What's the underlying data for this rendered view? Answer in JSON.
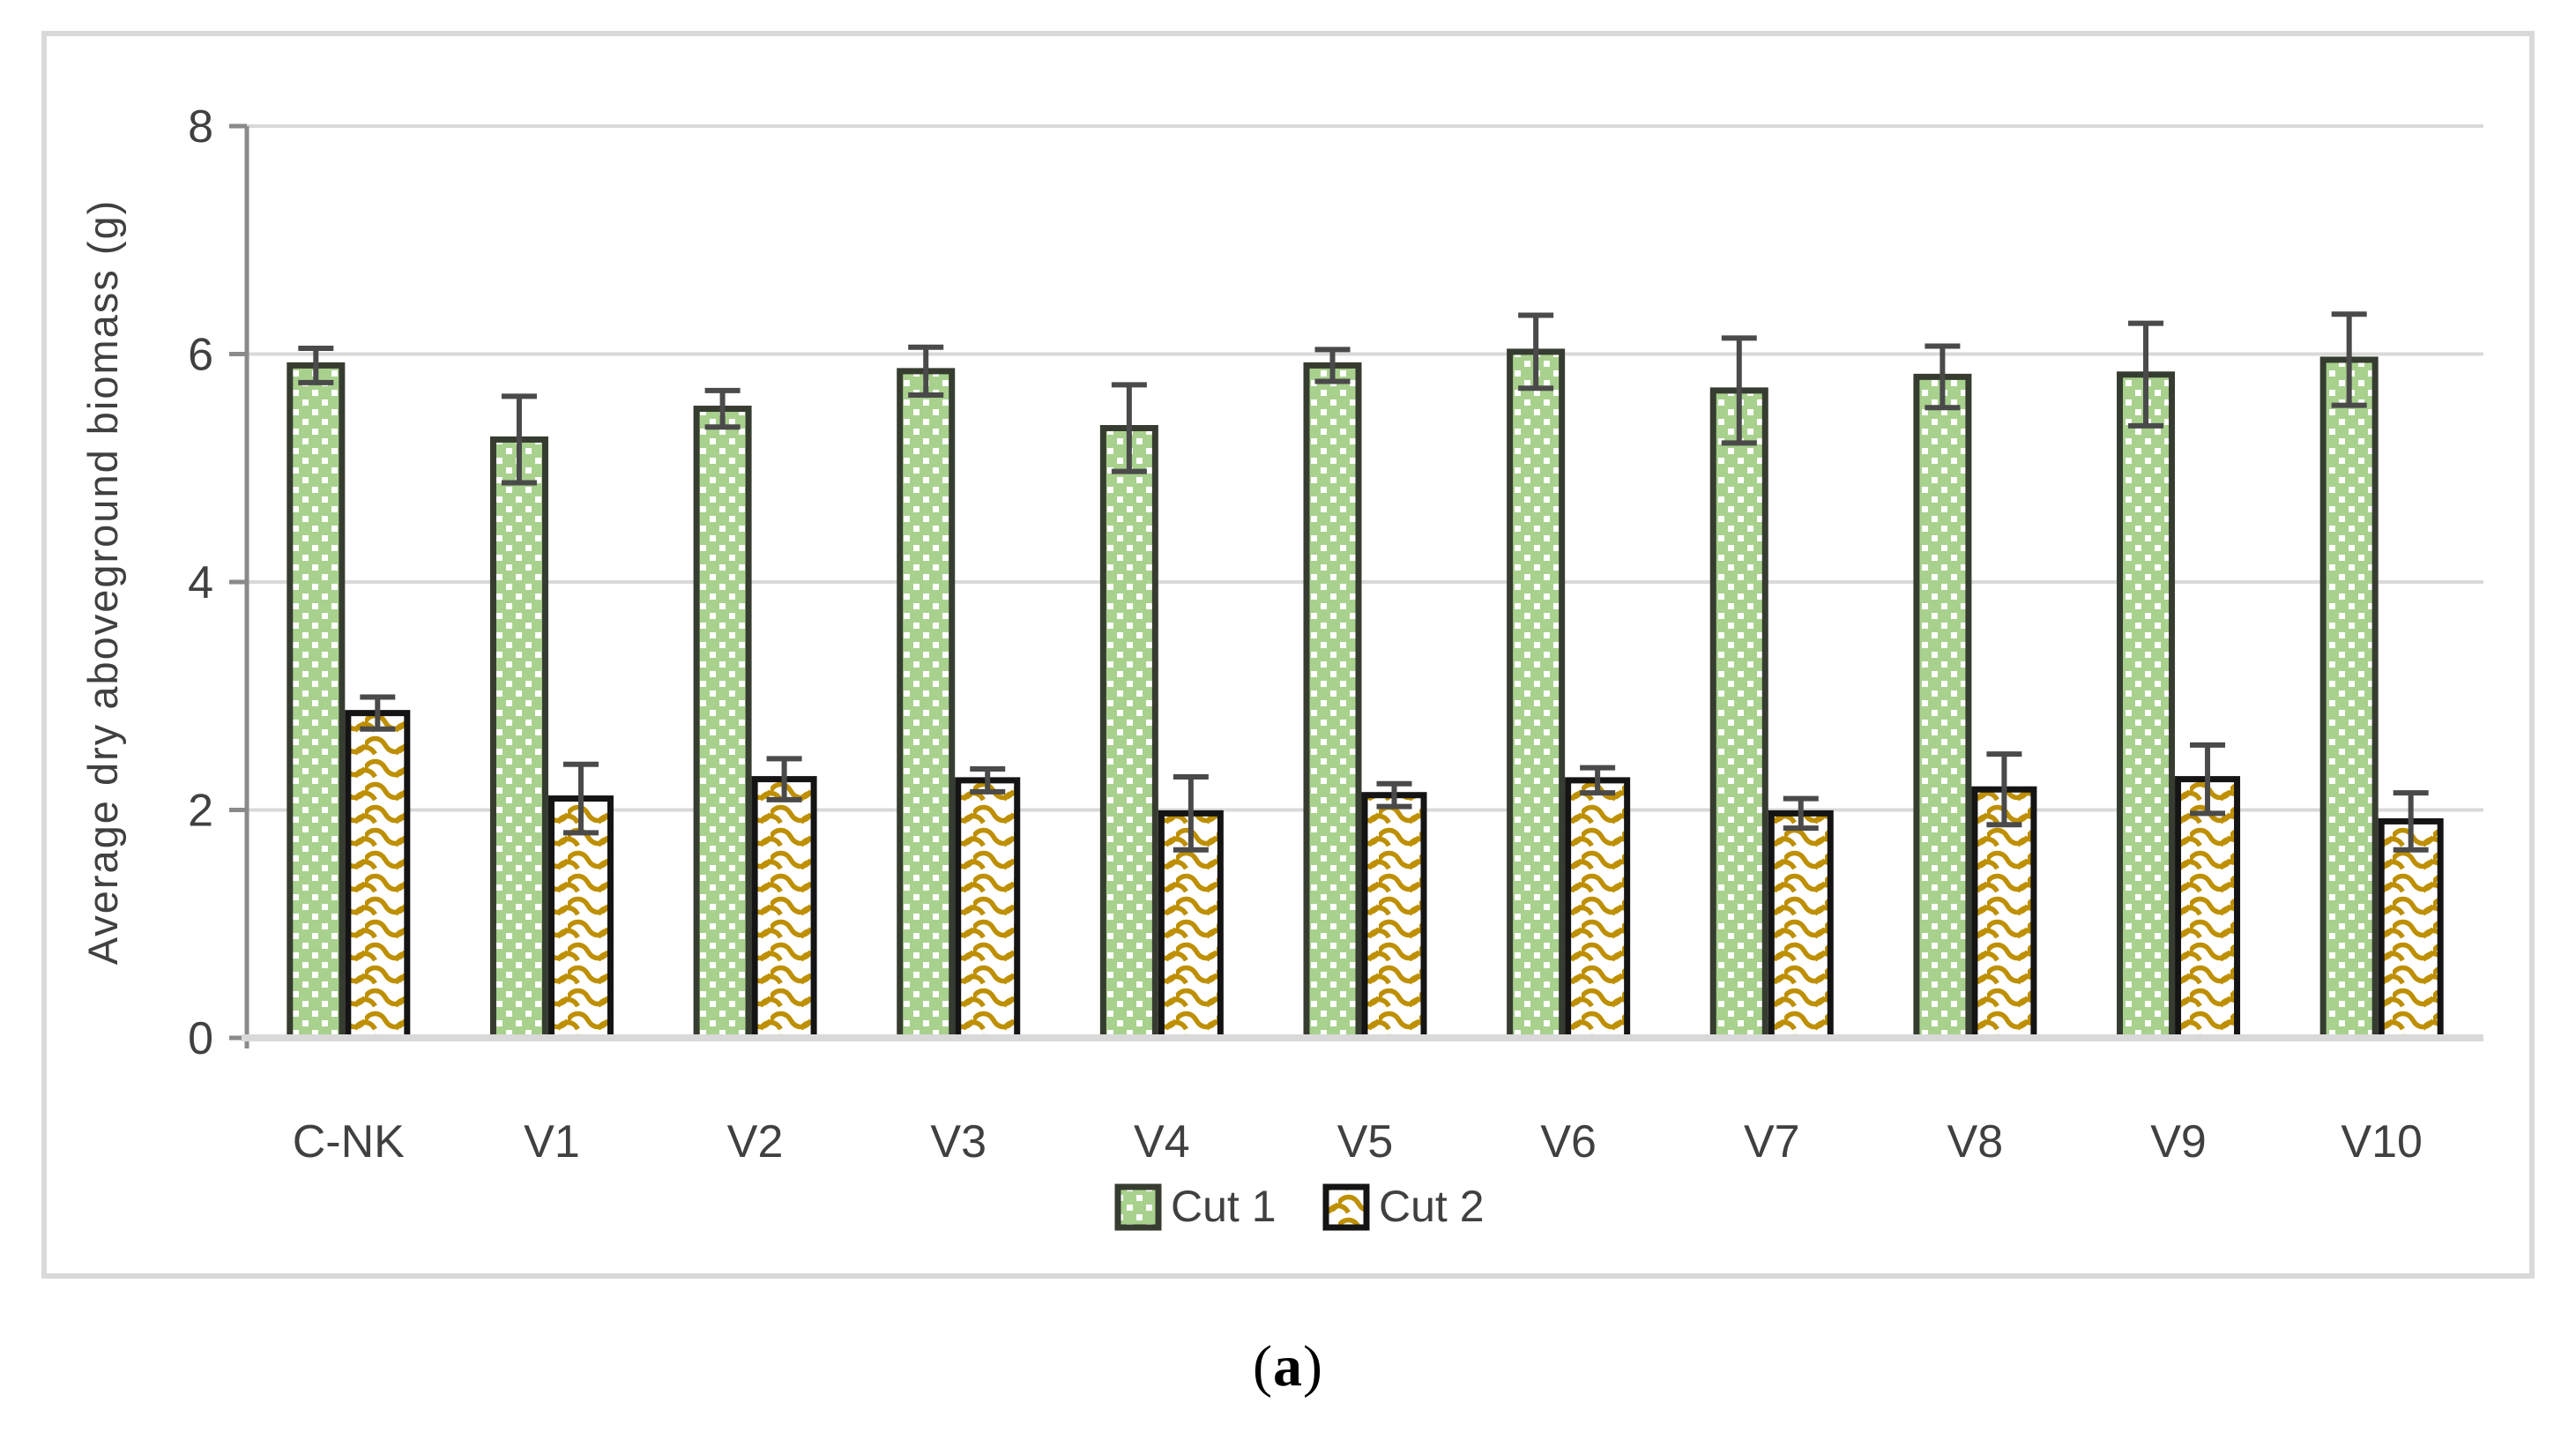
{
  "figure": {
    "caption_open": "(",
    "caption_letter": "a",
    "caption_close": ")"
  },
  "chart_data": {
    "type": "bar",
    "title": "",
    "xlabel": "",
    "ylabel": "Average dry aboveground biomass (g)",
    "ylim": [
      0,
      8
    ],
    "yticks": [
      0,
      2,
      4,
      6,
      8
    ],
    "grid": true,
    "legend_position": "bottom",
    "categories": [
      "C-NK",
      "V1",
      "V2",
      "V3",
      "V4",
      "V5",
      "V6",
      "V7",
      "V8",
      "V9",
      "V10"
    ],
    "series": [
      {
        "name": "Cut 1",
        "pattern": "dots",
        "values": [
          5.9,
          5.25,
          5.52,
          5.85,
          5.35,
          5.9,
          6.02,
          5.68,
          5.8,
          5.82,
          5.95
        ],
        "errors": [
          0.15,
          0.38,
          0.16,
          0.21,
          0.38,
          0.14,
          0.32,
          0.46,
          0.27,
          0.45,
          0.4
        ]
      },
      {
        "name": "Cut 2",
        "pattern": "waves",
        "values": [
          2.85,
          2.1,
          2.27,
          2.26,
          1.97,
          2.13,
          2.26,
          1.97,
          2.18,
          2.27,
          1.9
        ],
        "errors": [
          0.14,
          0.3,
          0.18,
          0.1,
          0.32,
          0.1,
          0.11,
          0.13,
          0.31,
          0.3,
          0.25
        ]
      }
    ]
  },
  "colors": {
    "cut1_fill": "#A9D18E",
    "cut1_dot": "#FFFFFF",
    "cut1_border": "#363C30",
    "cut2_fill": "#FFFFFF",
    "cut2_wave": "#BE8F00",
    "cut2_border": "#141414",
    "error_bar": "#4A4A4A",
    "gridline": "#D9D9D9",
    "axis_line": "#8A8A8A",
    "baseline": "#D9D9D9",
    "frame": "#D9D9D9",
    "text": "#404040"
  }
}
